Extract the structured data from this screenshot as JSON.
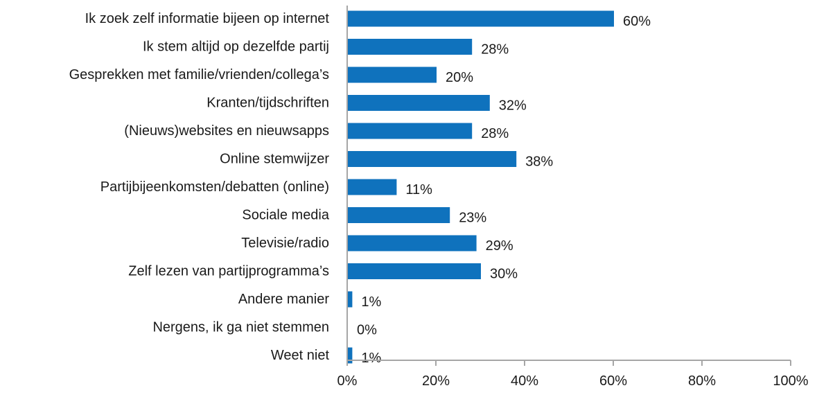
{
  "chart_data": {
    "type": "bar",
    "orientation": "horizontal",
    "categories": [
      "Ik zoek zelf informatie bijeen op internet",
      "Ik stem altijd op dezelfde partij",
      "Gesprekken met familie/vrienden/collega’s",
      "Kranten/tijdschriften",
      "(Nieuws)websites en nieuwsapps",
      "Online stemwijzer",
      "Partijbijeenkomsten/debatten (online)",
      "Sociale media",
      "Televisie/radio",
      "Zelf lezen van partijprogramma’s",
      "Andere manier",
      "Nergens, ik ga niet stemmen",
      "Weet niet"
    ],
    "values": [
      60,
      28,
      20,
      32,
      28,
      38,
      11,
      23,
      29,
      30,
      1,
      0,
      1
    ],
    "value_labels": [
      "60%",
      "28%",
      "20%",
      "32%",
      "28%",
      "38%",
      "11%",
      "23%",
      "29%",
      "30%",
      "1%",
      "0%",
      "1%"
    ],
    "title": "",
    "xlabel": "",
    "ylabel": "",
    "xlim": [
      0,
      100
    ],
    "xticks": [
      0,
      20,
      40,
      60,
      80,
      100
    ],
    "xtick_labels": [
      "0%",
      "20%",
      "40%",
      "60%",
      "80%",
      "100%"
    ],
    "grid": false,
    "legend": "none",
    "bar_color": "#0F72BD",
    "axis_color": "#A6A6A6"
  }
}
